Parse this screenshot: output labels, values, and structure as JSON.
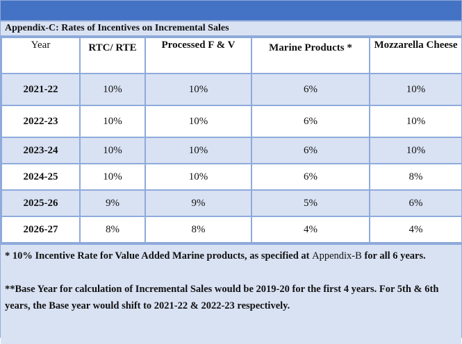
{
  "title": "Appendix-C: Rates of Incentives on Incremental Sales",
  "headers": [
    "Year",
    "RTC/ RTE",
    "Processed F & V",
    "Marine Products *",
    "Mozzarella Cheese"
  ],
  "rows": [
    [
      "2021-22",
      "10%",
      "10%",
      "6%",
      "10%"
    ],
    [
      "2022-23",
      "10%",
      "10%",
      "6%",
      "10%"
    ],
    [
      "2023-24",
      "10%",
      "10%",
      "6%",
      "10%"
    ],
    [
      "2024-25",
      "10%",
      "10%",
      "6%",
      "8%"
    ],
    [
      "2025-26",
      "9%",
      "9%",
      "5%",
      "6%"
    ],
    [
      "2026-27",
      "8%",
      "8%",
      "4%",
      "4%"
    ]
  ],
  "notes": {
    "note1_a": "* 10% Incentive Rate for Value Added Marine products, as specified at ",
    "note1_ref": "Appendix-B",
    "note1_b": " for all 6 years.",
    "note2": "**Base Year for calculation of Incremental Sales would be 2019-20 for the first 4 years. For 5th & 6th years, the Base year would shift to 2021-22 & 2022-23 respectively."
  },
  "colors": {
    "header_bar": "#4472c4",
    "row_alt": "#d9e2f3",
    "border": "#8eaadb"
  }
}
